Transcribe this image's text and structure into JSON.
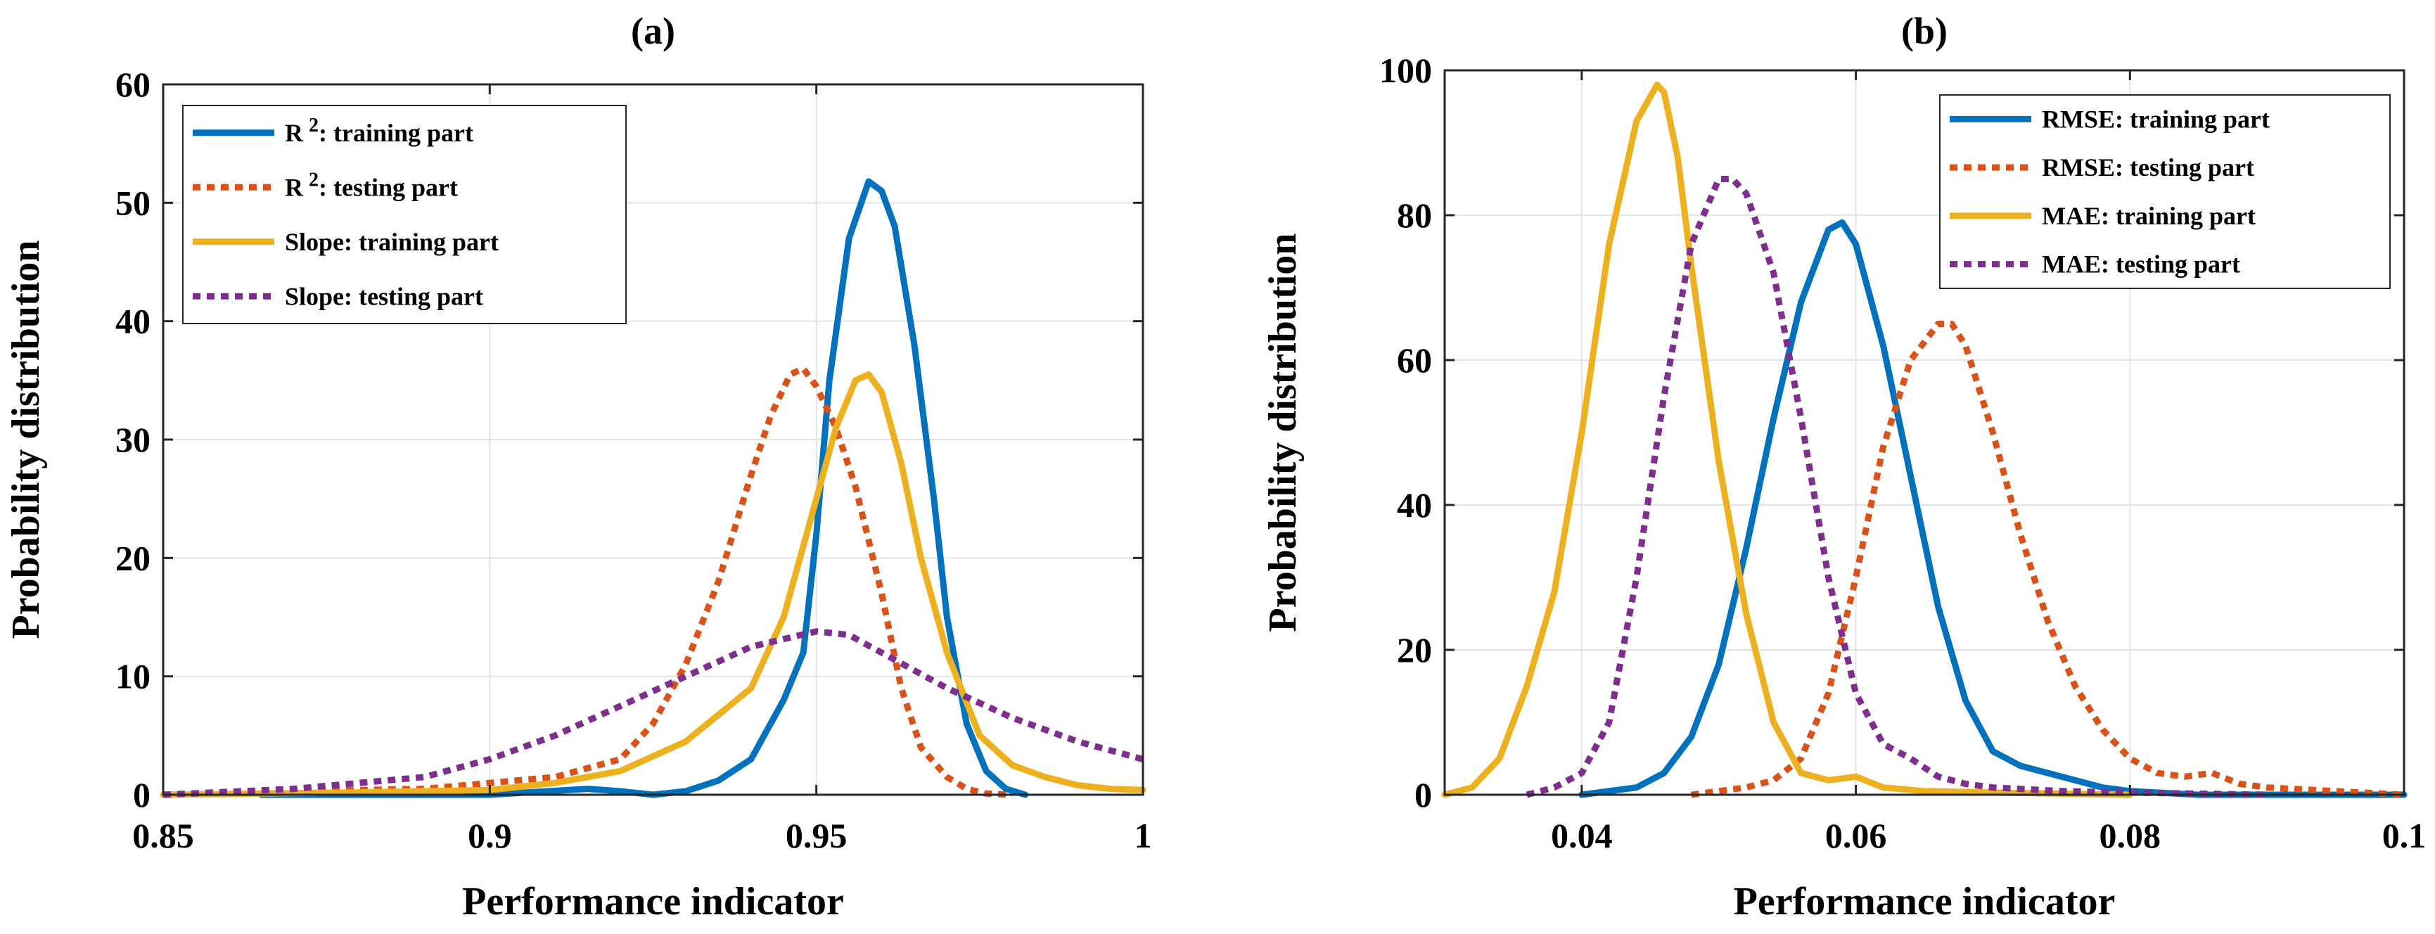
{
  "chart_data": [
    {
      "type": "line",
      "title": "(a)",
      "xlabel": "Performance indicator",
      "ylabel": "Probability distribution",
      "xlim": [
        0.85,
        1.0
      ],
      "ylim": [
        0,
        60
      ],
      "xticks": [
        0.85,
        0.9,
        0.95,
        1.0
      ],
      "xtick_labels": [
        "0.85",
        "0.9",
        "0.95",
        "1"
      ],
      "yticks": [
        0,
        10,
        20,
        30,
        40,
        50,
        60
      ],
      "ytick_labels": [
        "0",
        "10",
        "20",
        "30",
        "40",
        "50",
        "60"
      ],
      "grid": true,
      "legend_position": "top-left",
      "series": [
        {
          "name_main": "R",
          "name_sup": "2",
          "name_rest": ": training part",
          "color": "#0072BD",
          "style": "solid",
          "x": [
            0.865,
            0.88,
            0.9,
            0.915,
            0.92,
            0.925,
            0.93,
            0.935,
            0.94,
            0.945,
            0.948,
            0.95,
            0.952,
            0.955,
            0.958,
            0.96,
            0.962,
            0.965,
            0.968,
            0.97,
            0.973,
            0.976,
            0.979,
            0.982
          ],
          "y": [
            0,
            0,
            0,
            0.5,
            0.3,
            0,
            0.3,
            1.2,
            3,
            8,
            12,
            22,
            35,
            47,
            51.8,
            51,
            48,
            38,
            25,
            15,
            6,
            2,
            0.5,
            0
          ]
        },
        {
          "name_main": "R",
          "name_sup": "2",
          "name_rest": ": testing part",
          "color": "#D95319",
          "style": "dotted",
          "x": [
            0.85,
            0.87,
            0.89,
            0.9,
            0.91,
            0.92,
            0.925,
            0.93,
            0.935,
            0.94,
            0.943,
            0.946,
            0.948,
            0.95,
            0.953,
            0.956,
            0.96,
            0.963,
            0.966,
            0.97,
            0.973,
            0.976,
            0.98
          ],
          "y": [
            0,
            0.3,
            0.5,
            1,
            1.5,
            3,
            6,
            11,
            18,
            27,
            32,
            35.5,
            36,
            34.5,
            31,
            26,
            17,
            9,
            4,
            1.5,
            0.5,
            0.1,
            0
          ]
        },
        {
          "name_main": "Slope: training part",
          "name_sup": "",
          "name_rest": "",
          "color": "#EDB120",
          "style": "solid",
          "x": [
            0.85,
            0.88,
            0.9,
            0.91,
            0.92,
            0.93,
            0.94,
            0.945,
            0.95,
            0.953,
            0.956,
            0.958,
            0.96,
            0.963,
            0.966,
            0.97,
            0.975,
            0.98,
            0.985,
            0.99,
            0.995,
            1.0
          ],
          "y": [
            0,
            0.2,
            0.4,
            1,
            2,
            4.5,
            9,
            15,
            25,
            31,
            35,
            35.5,
            34,
            28,
            20,
            12,
            5,
            2.5,
            1.5,
            0.8,
            0.5,
            0.4
          ]
        },
        {
          "name_main": "Slope: testing part",
          "name_sup": "",
          "name_rest": "",
          "color": "#7E2F8E",
          "style": "dotted",
          "x": [
            0.85,
            0.87,
            0.89,
            0.9,
            0.91,
            0.92,
            0.93,
            0.94,
            0.95,
            0.955,
            0.96,
            0.97,
            0.98,
            0.99,
            1.0
          ],
          "y": [
            0,
            0.5,
            1.5,
            3,
            5,
            7.5,
            10,
            12.5,
            13.8,
            13.5,
            12,
            9,
            6.5,
            4.5,
            3
          ]
        }
      ]
    },
    {
      "type": "line",
      "title": "(b)",
      "xlabel": "Performance indicator",
      "ylabel": "Probability distribution",
      "xlim": [
        0.03,
        0.1
      ],
      "ylim": [
        0,
        100
      ],
      "xticks": [
        0.04,
        0.06,
        0.08,
        0.1
      ],
      "xtick_labels": [
        "0.04",
        "0.06",
        "0.08",
        "0.1"
      ],
      "yticks": [
        0,
        20,
        40,
        60,
        80,
        100
      ],
      "ytick_labels": [
        "0",
        "20",
        "40",
        "60",
        "80",
        "100"
      ],
      "grid": true,
      "legend_position": "top-right",
      "series": [
        {
          "name_main": "RMSE: training part",
          "name_sup": "",
          "name_rest": "",
          "color": "#0072BD",
          "style": "solid",
          "x": [
            0.04,
            0.044,
            0.046,
            0.048,
            0.05,
            0.052,
            0.054,
            0.056,
            0.058,
            0.059,
            0.06,
            0.062,
            0.064,
            0.066,
            0.068,
            0.07,
            0.072,
            0.074,
            0.076,
            0.078,
            0.08,
            0.085,
            0.09,
            0.1
          ],
          "y": [
            0,
            1,
            3,
            8,
            18,
            34,
            52,
            68,
            78,
            79,
            76,
            62,
            44,
            26,
            13,
            6,
            4,
            3,
            2,
            1,
            0.5,
            0,
            0,
            0
          ]
        },
        {
          "name_main": "RMSE: testing part",
          "name_sup": "",
          "name_rest": "",
          "color": "#D95319",
          "style": "dotted",
          "x": [
            0.048,
            0.052,
            0.054,
            0.056,
            0.058,
            0.06,
            0.062,
            0.064,
            0.066,
            0.067,
            0.068,
            0.07,
            0.072,
            0.074,
            0.076,
            0.078,
            0.08,
            0.082,
            0.084,
            0.086,
            0.088,
            0.09,
            0.095,
            0.1
          ],
          "y": [
            0,
            1,
            2,
            5,
            14,
            30,
            48,
            60,
            65,
            65,
            62,
            50,
            36,
            24,
            15,
            9,
            5,
            3,
            2.5,
            3,
            1.5,
            1,
            0.5,
            0
          ]
        },
        {
          "name_main": "MAE: training part",
          "name_sup": "",
          "name_rest": "",
          "color": "#EDB120",
          "style": "solid",
          "x": [
            0.03,
            0.032,
            0.034,
            0.036,
            0.038,
            0.04,
            0.042,
            0.044,
            0.0455,
            0.046,
            0.047,
            0.048,
            0.05,
            0.052,
            0.054,
            0.056,
            0.058,
            0.06,
            0.062,
            0.065,
            0.07,
            0.08
          ],
          "y": [
            0,
            1,
            5,
            15,
            28,
            50,
            76,
            93,
            98,
            97,
            88,
            73,
            46,
            25,
            10,
            3,
            2,
            2.5,
            1,
            0.5,
            0.3,
            0
          ]
        },
        {
          "name_main": "MAE: testing part",
          "name_sup": "",
          "name_rest": "",
          "color": "#7E2F8E",
          "style": "dotted",
          "x": [
            0.036,
            0.038,
            0.04,
            0.042,
            0.044,
            0.046,
            0.048,
            0.05,
            0.051,
            0.052,
            0.054,
            0.056,
            0.058,
            0.06,
            0.062,
            0.064,
            0.066,
            0.068,
            0.07,
            0.075,
            0.08,
            0.09
          ],
          "y": [
            0,
            1,
            3,
            10,
            30,
            55,
            76,
            85,
            85,
            83,
            72,
            52,
            30,
            14,
            7,
            5,
            2.5,
            1.5,
            1,
            0.5,
            0.3,
            0
          ]
        }
      ]
    }
  ]
}
